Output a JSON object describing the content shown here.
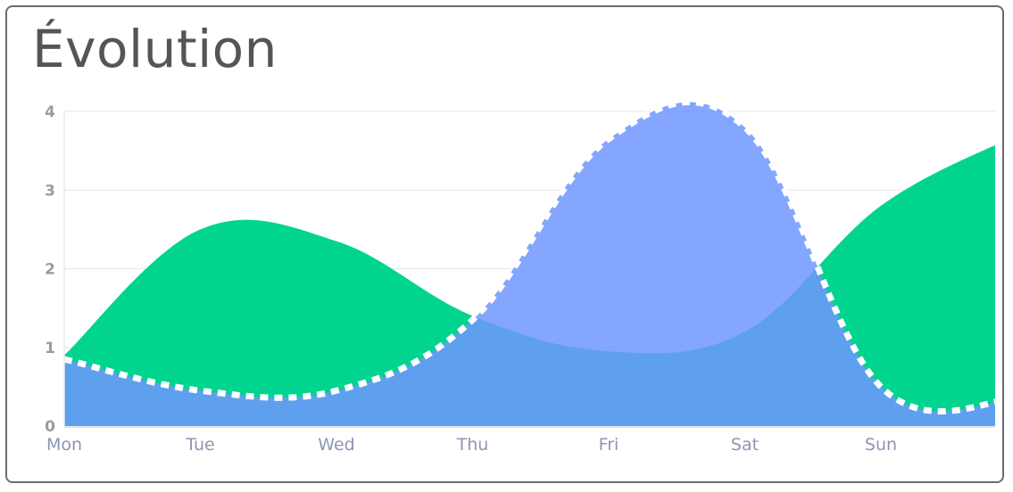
{
  "card": {
    "title": "Évolution"
  },
  "chart_data": {
    "type": "area",
    "categories": [
      "Mon",
      "Tue",
      "Wed",
      "Thu",
      "Fri",
      "Sat",
      "Sun",
      ""
    ],
    "ylim": [
      0,
      4
    ],
    "yticks": [
      0,
      1,
      2,
      3,
      4
    ],
    "grid": true,
    "series": [
      {
        "values": [
          0.9,
          2.5,
          2.35,
          1.4,
          0.95,
          1.2,
          2.8,
          3.7
        ],
        "color": "#00d48f",
        "style": "solid-fill"
      },
      {
        "values": [
          0.85,
          0.45,
          0.45,
          1.35,
          3.65,
          3.8,
          0.5,
          0.35
        ],
        "color": "#6f96ff",
        "style": "dashed-white-border-fill"
      }
    ],
    "overlap_color": "#3d9fe2"
  }
}
